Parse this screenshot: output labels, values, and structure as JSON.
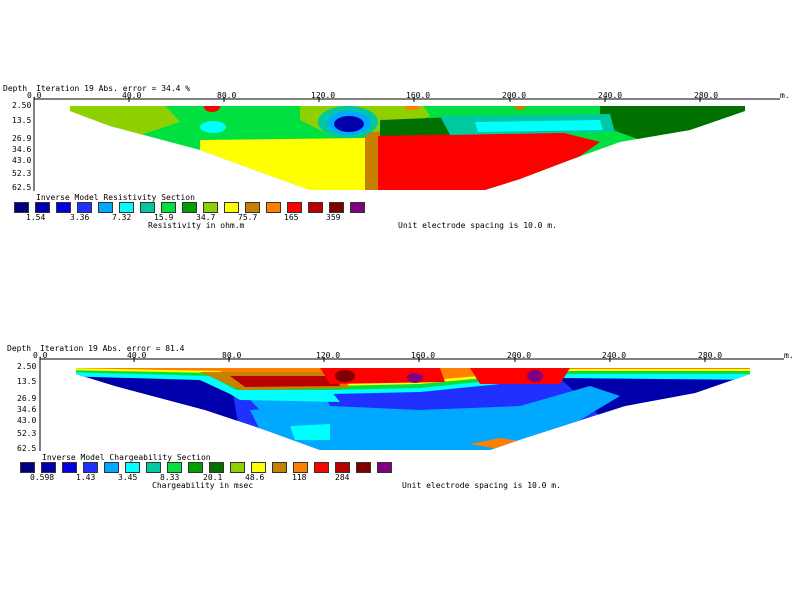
{
  "palette": [
    "#000080",
    "#0000aa",
    "#0000e0",
    "#2030ff",
    "#00a8ff",
    "#00ffff",
    "#00c8a0",
    "#00e040",
    "#00a000",
    "#007000",
    "#90d000",
    "#ffff00",
    "#c88000",
    "#ff8000",
    "#ff0000",
    "#b80000",
    "#800000",
    "#800080"
  ],
  "chart_data": [
    {
      "type": "heatmap",
      "header": {
        "depth": "Depth",
        "iteration": "Iteration 19 Abs. error = 34.4 %"
      },
      "x_unit": "m.",
      "x_ticks": [
        "0.0",
        "40.0",
        "80.0",
        "120.0",
        "160.0",
        "200.0",
        "240.0",
        "280.0"
      ],
      "depth_labels": [
        "2.50",
        "13.5",
        "26.9",
        "34.6",
        "43.0",
        "52.3",
        "62.5"
      ],
      "title": "Inverse Model Resistivity Section",
      "legend_colors": [
        "#000080",
        "#0000aa",
        "#0000e0",
        "#2030ff",
        "#00a8ff",
        "#00ffff",
        "#00c8a0",
        "#00e040",
        "#00a000",
        "#90d000",
        "#ffff00",
        "#c88000",
        "#ff8000",
        "#ff0000",
        "#b80000",
        "#800000",
        "#800080"
      ],
      "legend_labels": [
        "1.54",
        "3.36",
        "7.32",
        "15.9",
        "34.7",
        "75.7",
        "165",
        "359"
      ],
      "unit_label": "Resistivity in ohm.m",
      "spacing_note": "Unit electrode spacing is 10.0 m."
    },
    {
      "type": "heatmap",
      "header": {
        "depth": "Depth",
        "iteration": "Iteration 19 Abs. error = 81.4"
      },
      "x_unit": "m.",
      "x_ticks": [
        "0.0",
        "40.0",
        "80.0",
        "120.0",
        "160.0",
        "200.0",
        "240.0",
        "280.0"
      ],
      "depth_labels": [
        "2.50",
        "13.5",
        "26.9",
        "34.6",
        "43.0",
        "52.3",
        "62.5"
      ],
      "title": "Inverse Model Chargeability Section",
      "legend_colors": [
        "#000080",
        "#0000aa",
        "#0000e0",
        "#2030ff",
        "#00a8ff",
        "#00ffff",
        "#00c8a0",
        "#00e040",
        "#00a000",
        "#007000",
        "#90d000",
        "#ffff00",
        "#c88000",
        "#ff8000",
        "#ff0000",
        "#b80000",
        "#800000",
        "#800080"
      ],
      "legend_labels": [
        "0.598",
        "1.43",
        "3.45",
        "8.33",
        "20.1",
        "48.6",
        "118",
        "284"
      ],
      "unit_label": "Chargeability in msec",
      "spacing_note": "Unit electrode spacing is 10.0 m."
    }
  ]
}
